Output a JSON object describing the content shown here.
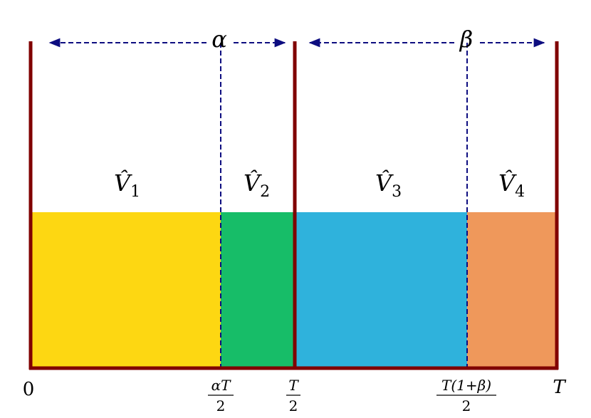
{
  "arrows": [
    {
      "label": "α"
    },
    {
      "label": "β"
    }
  ],
  "regions": [
    {
      "label": "V̂",
      "subscript": "1"
    },
    {
      "label": "V̂",
      "subscript": "2"
    },
    {
      "label": "V̂",
      "subscript": "3"
    },
    {
      "label": "V̂",
      "subscript": "4"
    }
  ],
  "axis_labels": [
    {
      "text": "0"
    },
    {
      "numerator": "αT",
      "denominator": "2"
    },
    {
      "numerator": "T",
      "denominator": "2"
    },
    {
      "numerator": "T(1+β)",
      "denominator": "2"
    },
    {
      "text": "T"
    }
  ]
}
